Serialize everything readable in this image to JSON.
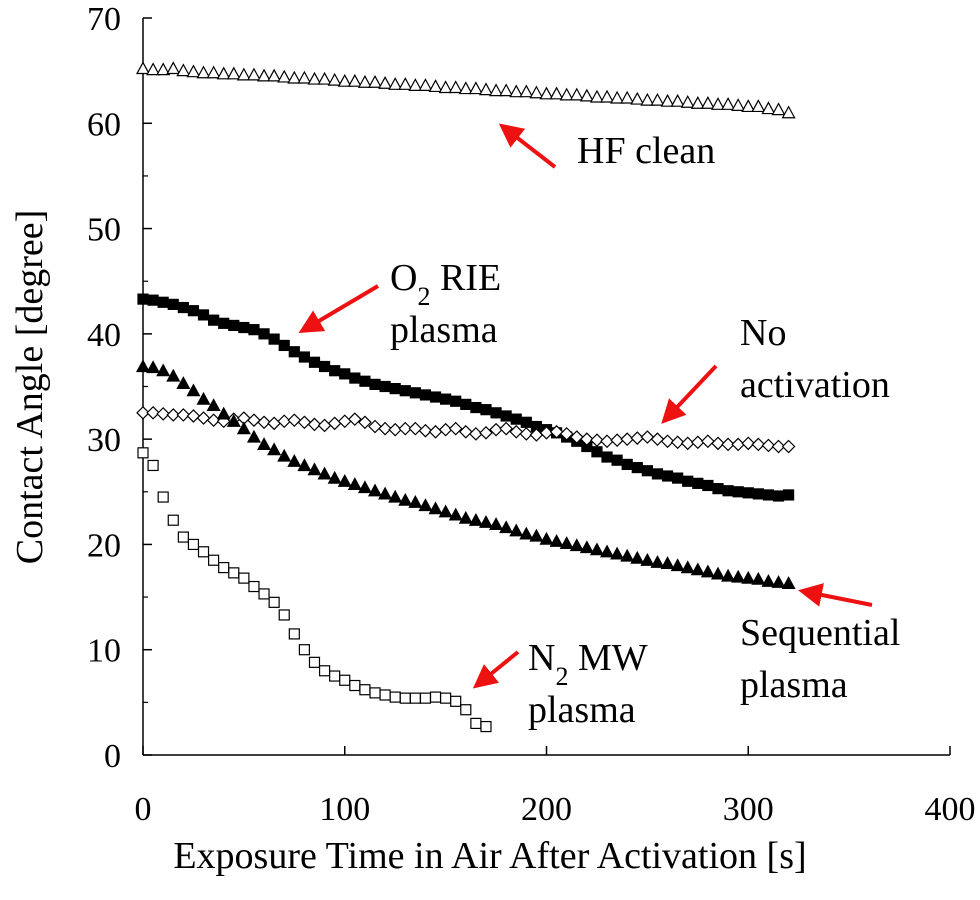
{
  "chart_data": {
    "type": "scatter",
    "xlabel": "Exposure Time in Air After Activation [s]",
    "ylabel": "Contact Angle [degree]",
    "xlim": [
      0,
      400
    ],
    "xticks": [
      0,
      100,
      200,
      300,
      400
    ],
    "ylim": [
      0,
      70
    ],
    "yticks": [
      0,
      10,
      20,
      30,
      40,
      50,
      60,
      70
    ],
    "yminorticks": [
      5,
      15,
      25,
      35,
      45,
      55,
      65
    ],
    "series": [
      {
        "marker": "triangle",
        "filled": false,
        "color": "#000000",
        "x": [
          0,
          5,
          10,
          15,
          20,
          25,
          30,
          35,
          40,
          45,
          50,
          55,
          60,
          65,
          70,
          75,
          80,
          85,
          90,
          95,
          100,
          105,
          110,
          115,
          120,
          125,
          130,
          135,
          140,
          145,
          150,
          155,
          160,
          165,
          170,
          175,
          180,
          185,
          190,
          195,
          200,
          205,
          210,
          215,
          220,
          225,
          230,
          235,
          240,
          245,
          250,
          255,
          260,
          265,
          270,
          275,
          280,
          285,
          290,
          295,
          300,
          305,
          310,
          315,
          320
        ],
        "values": [
          65.2,
          65.1,
          65.1,
          65.2,
          65.0,
          64.9,
          64.8,
          64.8,
          64.7,
          64.7,
          64.6,
          64.6,
          64.5,
          64.5,
          64.4,
          64.3,
          64.3,
          64.2,
          64.2,
          64.1,
          64.0,
          64.0,
          63.9,
          63.9,
          63.8,
          63.7,
          63.7,
          63.6,
          63.6,
          63.5,
          63.4,
          63.4,
          63.3,
          63.3,
          63.2,
          63.1,
          63.1,
          63.0,
          63.0,
          62.9,
          62.8,
          62.8,
          62.7,
          62.7,
          62.6,
          62.5,
          62.5,
          62.4,
          62.4,
          62.3,
          62.2,
          62.2,
          62.1,
          62.1,
          62.0,
          61.9,
          61.9,
          61.8,
          61.8,
          61.7,
          61.6,
          61.6,
          61.4,
          61.3,
          61.0
        ]
      },
      {
        "marker": "square",
        "filled": true,
        "color": "#000000",
        "x": [
          0,
          5,
          10,
          15,
          20,
          25,
          30,
          35,
          40,
          45,
          50,
          55,
          60,
          65,
          70,
          75,
          80,
          85,
          90,
          95,
          100,
          105,
          110,
          115,
          120,
          125,
          130,
          135,
          140,
          145,
          150,
          155,
          160,
          165,
          170,
          175,
          180,
          185,
          190,
          195,
          200,
          205,
          210,
          215,
          220,
          225,
          230,
          235,
          240,
          245,
          250,
          255,
          260,
          265,
          270,
          275,
          280,
          285,
          290,
          295,
          300,
          305,
          310,
          315,
          320
        ],
        "values": [
          43.3,
          43.2,
          43.0,
          42.8,
          42.5,
          42.2,
          41.8,
          41.3,
          41.0,
          40.8,
          40.6,
          40.4,
          40.0,
          39.5,
          38.9,
          38.3,
          37.8,
          37.3,
          36.9,
          36.5,
          36.2,
          35.8,
          35.5,
          35.2,
          35.0,
          34.8,
          34.6,
          34.4,
          34.2,
          34.0,
          33.8,
          33.6,
          33.3,
          33.0,
          32.8,
          32.5,
          32.2,
          31.9,
          31.6,
          31.2,
          30.9,
          30.6,
          30.2,
          29.8,
          29.3,
          28.8,
          28.3,
          28.0,
          27.6,
          27.3,
          27.0,
          26.7,
          26.5,
          26.3,
          26.0,
          25.8,
          25.6,
          25.3,
          25.1,
          25.0,
          24.9,
          24.8,
          24.7,
          24.6,
          24.7
        ]
      },
      {
        "marker": "diamond",
        "filled": false,
        "color": "#000000",
        "x": [
          0,
          5,
          10,
          15,
          20,
          25,
          30,
          35,
          40,
          45,
          50,
          55,
          60,
          65,
          70,
          75,
          80,
          85,
          90,
          95,
          100,
          105,
          110,
          115,
          120,
          125,
          130,
          135,
          140,
          145,
          150,
          155,
          160,
          165,
          170,
          175,
          180,
          185,
          190,
          195,
          200,
          205,
          210,
          215,
          220,
          225,
          230,
          235,
          240,
          245,
          250,
          255,
          260,
          265,
          270,
          275,
          280,
          285,
          290,
          295,
          300,
          305,
          310,
          315,
          320
        ],
        "values": [
          32.5,
          32.5,
          32.4,
          32.3,
          32.3,
          32.2,
          32.0,
          31.8,
          31.7,
          31.9,
          32.0,
          31.8,
          31.6,
          31.5,
          31.7,
          31.8,
          31.6,
          31.4,
          31.3,
          31.5,
          31.7,
          31.9,
          31.6,
          31.2,
          31.0,
          30.9,
          31.0,
          31.0,
          30.8,
          30.7,
          30.9,
          31.0,
          30.7,
          30.5,
          30.6,
          30.9,
          31.0,
          30.7,
          30.5,
          30.4,
          30.6,
          30.7,
          30.5,
          30.2,
          30.0,
          29.9,
          29.8,
          29.9,
          30.0,
          30.1,
          30.2,
          30.0,
          29.8,
          29.7,
          29.6,
          29.7,
          29.8,
          29.6,
          29.5,
          29.5,
          29.6,
          29.5,
          29.4,
          29.3,
          29.3
        ]
      },
      {
        "marker": "triangle",
        "filled": true,
        "color": "#000000",
        "x": [
          0,
          5,
          10,
          15,
          20,
          25,
          30,
          35,
          40,
          45,
          50,
          55,
          60,
          65,
          70,
          75,
          80,
          85,
          90,
          95,
          100,
          105,
          110,
          115,
          120,
          125,
          130,
          135,
          140,
          145,
          150,
          155,
          160,
          165,
          170,
          175,
          180,
          185,
          190,
          195,
          200,
          205,
          210,
          215,
          220,
          225,
          230,
          235,
          240,
          245,
          250,
          255,
          260,
          265,
          270,
          275,
          280,
          285,
          290,
          295,
          300,
          305,
          310,
          315,
          320
        ],
        "values": [
          36.9,
          36.8,
          36.5,
          36.0,
          35.3,
          34.6,
          33.8,
          33.2,
          32.4,
          31.7,
          31.0,
          30.2,
          29.5,
          29.0,
          28.4,
          27.9,
          27.5,
          27.1,
          26.7,
          26.3,
          26.0,
          25.7,
          25.4,
          25.1,
          24.8,
          24.5,
          24.2,
          24.0,
          23.7,
          23.4,
          23.1,
          22.8,
          22.5,
          22.3,
          22.1,
          21.9,
          21.6,
          21.3,
          21.0,
          20.8,
          20.5,
          20.3,
          20.1,
          19.9,
          19.7,
          19.5,
          19.3,
          19.1,
          18.9,
          18.7,
          18.5,
          18.3,
          18.2,
          18.0,
          17.8,
          17.6,
          17.4,
          17.2,
          17.0,
          16.9,
          16.8,
          16.7,
          16.5,
          16.4,
          16.3
        ]
      },
      {
        "marker": "square",
        "filled": false,
        "color": "#000000",
        "x": [
          0,
          5,
          10,
          15,
          20,
          25,
          30,
          35,
          40,
          45,
          50,
          55,
          60,
          65,
          70,
          75,
          80,
          85,
          90,
          95,
          100,
          105,
          110,
          115,
          120,
          125,
          130,
          135,
          140,
          145,
          150,
          155,
          160,
          165,
          170
        ],
        "values": [
          28.7,
          27.5,
          24.5,
          22.3,
          20.7,
          20.0,
          19.3,
          18.5,
          17.8,
          17.3,
          16.8,
          16.0,
          15.3,
          14.5,
          13.3,
          11.5,
          10.0,
          8.8,
          8.0,
          7.5,
          7.1,
          6.6,
          6.2,
          5.9,
          5.7,
          5.5,
          5.4,
          5.4,
          5.4,
          5.5,
          5.4,
          5.1,
          4.3,
          3.0,
          2.7
        ]
      }
    ],
    "annotations": [
      {
        "lines": [
          [
            {
              "t": "HF clean"
            }
          ]
        ]
      },
      {
        "lines": [
          [
            {
              "t": "O"
            },
            {
              "t": "2",
              "sub": true
            },
            {
              "t": " RIE"
            }
          ],
          [
            {
              "t": "plasma"
            }
          ]
        ]
      },
      {
        "lines": [
          [
            {
              "t": "No"
            }
          ],
          [
            {
              "t": "activation"
            }
          ]
        ]
      },
      {
        "lines": [
          [
            {
              "t": "Sequential"
            }
          ],
          [
            {
              "t": "plasma"
            }
          ]
        ]
      },
      {
        "lines": [
          [
            {
              "t": "N"
            },
            {
              "t": "2",
              "sub": true
            },
            {
              "t": " MW"
            }
          ],
          [
            {
              "t": "plasma"
            }
          ]
        ]
      }
    ],
    "annotation_color": "#ee1111"
  }
}
